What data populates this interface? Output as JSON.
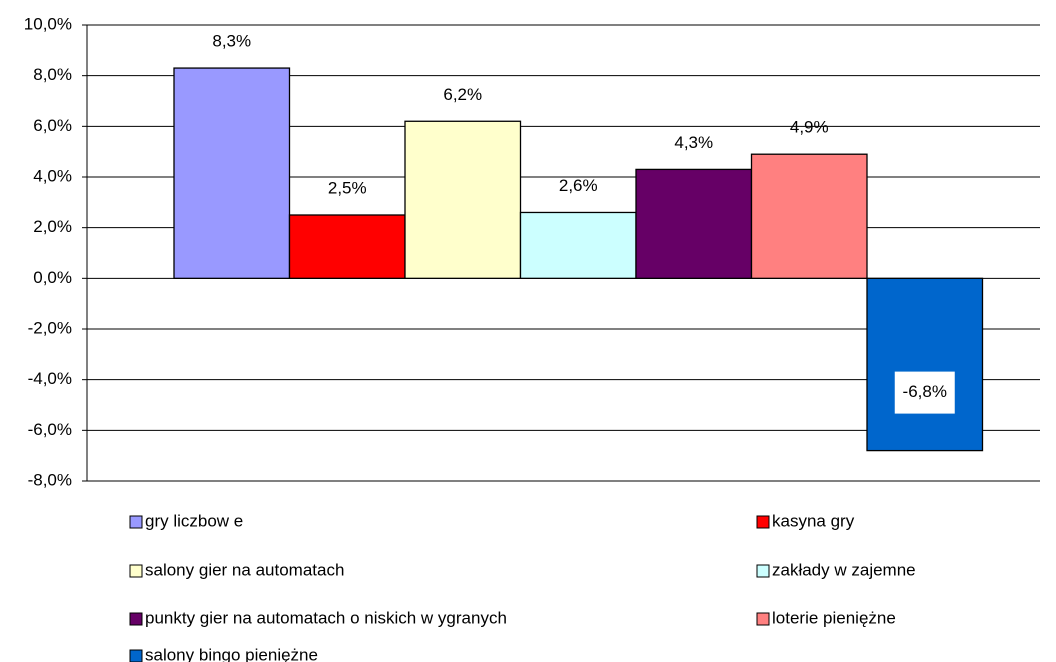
{
  "chart_data": {
    "type": "bar",
    "categories": [
      null
    ],
    "series": [
      {
        "name": "gry liczbow e",
        "color": "#9999ff",
        "values": [
          8.3
        ],
        "value_labels": [
          "8,3%"
        ]
      },
      {
        "name": "kasyna gry",
        "color": "#ff0000",
        "values": [
          2.5
        ],
        "value_labels": [
          "2,5%"
        ]
      },
      {
        "name": "salony gier na automatach",
        "color": "#ffffcc",
        "values": [
          6.2
        ],
        "value_labels": [
          "6,2%"
        ]
      },
      {
        "name": "zakłady w zajemne",
        "color": "#ccffff",
        "values": [
          2.6
        ],
        "value_labels": [
          "2,6%"
        ]
      },
      {
        "name": "punkty gier na automatach o niskich w ygranych",
        "color": "#660066",
        "values": [
          4.3
        ],
        "value_labels": [
          "4,3%"
        ]
      },
      {
        "name": "loterie pieniężne",
        "color": "#ff8080",
        "values": [
          4.9
        ],
        "value_labels": [
          "4,9%"
        ]
      },
      {
        "name": "salony bingo pieniężne",
        "color": "#0066cc",
        "values": [
          -6.8
        ],
        "value_labels": [
          "-6,8%"
        ]
      }
    ],
    "ylim": [
      -8,
      10
    ],
    "yticks": [
      {
        "value": -8,
        "label": "-8,0%"
      },
      {
        "value": -6,
        "label": "-6,0%"
      },
      {
        "value": -4,
        "label": "-4,0%"
      },
      {
        "value": -2,
        "label": "-2,0%"
      },
      {
        "value": 0,
        "label": "0,0%"
      },
      {
        "value": 2,
        "label": "2,0%"
      },
      {
        "value": 4,
        "label": "4,0%"
      },
      {
        "value": 6,
        "label": "6,0%"
      },
      {
        "value": 8,
        "label": "8,0%"
      },
      {
        "value": 10,
        "label": "10,0%"
      }
    ],
    "grid": true
  }
}
